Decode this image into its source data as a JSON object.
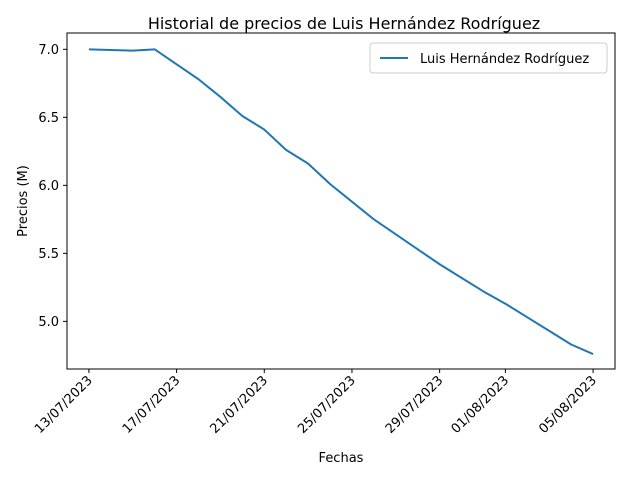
{
  "chart_data": {
    "type": "line",
    "title": "Historial de precios de Luis Hernández Rodríguez",
    "xlabel": "Fechas",
    "ylabel": "Precios (M)",
    "legend_position": "upper right",
    "grid": false,
    "x_ticks": [
      "13/07/2023",
      "17/07/2023",
      "21/07/2023",
      "25/07/2023",
      "29/07/2023",
      "01/08/2023",
      "05/08/2023"
    ],
    "x_tick_dates": [
      "2023-07-13",
      "2023-07-17",
      "2023-07-21",
      "2023-07-25",
      "2023-07-29",
      "2023-08-01",
      "2023-08-05"
    ],
    "y_ticks": [
      "5.0",
      "5.5",
      "6.0",
      "6.5",
      "7.0"
    ],
    "y_tick_values": [
      5.0,
      5.5,
      6.0,
      6.5,
      7.0
    ],
    "x_range": [
      "2023-07-12",
      "2023-08-06"
    ],
    "y_range": [
      4.65,
      7.12
    ],
    "series": [
      {
        "name": "Luis Hernández Rodríguez",
        "color": "#1f77b4",
        "points": [
          [
            "2023-07-13",
            7.0
          ],
          [
            "2023-07-14",
            6.995
          ],
          [
            "2023-07-15",
            6.99
          ],
          [
            "2023-07-16",
            7.0
          ],
          [
            "2023-07-17",
            6.89
          ],
          [
            "2023-07-18",
            6.78
          ],
          [
            "2023-07-19",
            6.65
          ],
          [
            "2023-07-20",
            6.51
          ],
          [
            "2023-07-21",
            6.41
          ],
          [
            "2023-07-22",
            6.26
          ],
          [
            "2023-07-23",
            6.16
          ],
          [
            "2023-07-24",
            6.01
          ],
          [
            "2023-07-25",
            5.88
          ],
          [
            "2023-07-26",
            5.75
          ],
          [
            "2023-07-27",
            5.64
          ],
          [
            "2023-07-28",
            5.53
          ],
          [
            "2023-07-29",
            5.42
          ],
          [
            "2023-07-30",
            5.32
          ],
          [
            "2023-07-31",
            5.22
          ],
          [
            "2023-08-01",
            5.13
          ],
          [
            "2023-08-02",
            5.03
          ],
          [
            "2023-08-03",
            4.93
          ],
          [
            "2023-08-04",
            4.83
          ],
          [
            "2023-08-05",
            4.76
          ]
        ]
      }
    ]
  }
}
